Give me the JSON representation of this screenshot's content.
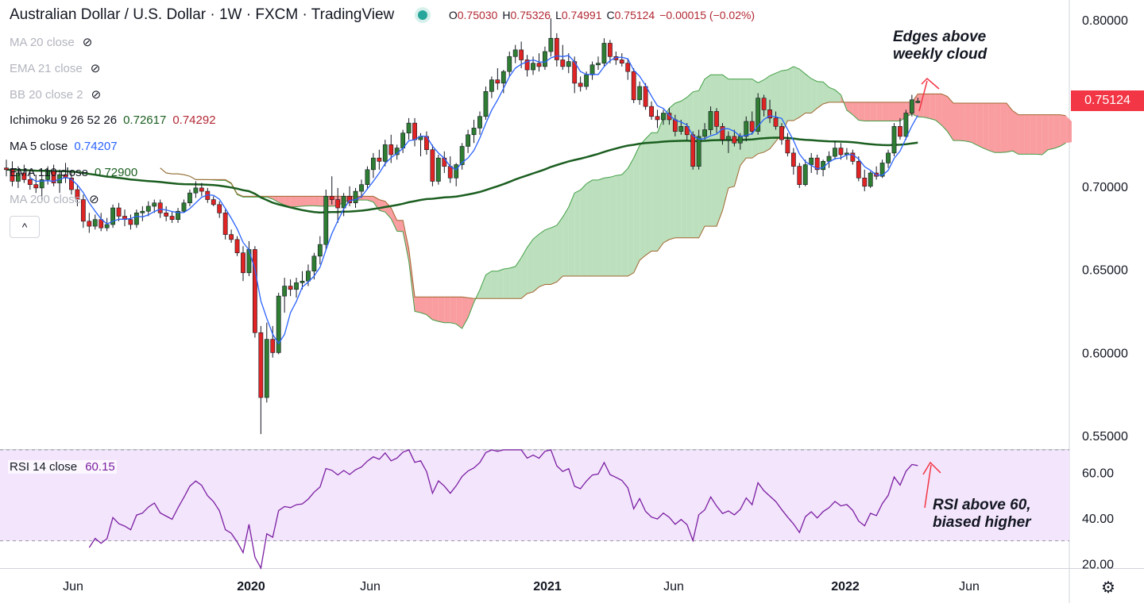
{
  "header": {
    "symbol": "Australian Dollar / U.S. Dollar · 1W · FXCM · TradingView",
    "ohlc": [
      {
        "k": "O",
        "v": "0.75030"
      },
      {
        "k": "H",
        "v": "0.75326"
      },
      {
        "k": "L",
        "v": "0.74991"
      },
      {
        "k": "C",
        "v": "0.75124"
      },
      {
        "k": "",
        "v": "−0.00015 (−0.02%)"
      }
    ]
  },
  "indicators": [
    {
      "name": "MA 20 close",
      "values": [],
      "hidden": true
    },
    {
      "name": "EMA 21 close",
      "values": [],
      "hidden": true
    },
    {
      "name": "BB 20 close 2",
      "values": [],
      "hidden": true
    },
    {
      "name": "Ichimoku 9 26 52 26",
      "values": [
        "0.72617",
        "0.74292"
      ],
      "hidden": false
    },
    {
      "name": "MA 5 close",
      "values": [
        "0.74207"
      ],
      "hidden": false
    },
    {
      "name": "EMA 110 close",
      "values": [
        "0.72900"
      ],
      "hidden": false
    },
    {
      "name": "MA 200 close",
      "values": [],
      "hidden": true
    }
  ],
  "rsi_label": {
    "name": "RSI 14 close",
    "value": "60.15"
  },
  "current_price_tag": "0.75124",
  "annotations": {
    "cloud": [
      "Edges above",
      "weekly cloud"
    ],
    "rsi": [
      "RSI above 60,",
      "biased higher"
    ]
  },
  "colors": {
    "up": "#2e7d32",
    "down": "#e02424",
    "ma5": "#2962ff",
    "ema110": "#1b5e20",
    "kumo_bear": "#f77c80",
    "kumo_bull": "#a5d6a7",
    "rsi_line": "#7b1fa2",
    "rsi_band": "#f3e5fc"
  },
  "chart_data": [
    {
      "type": "candlestick",
      "title": "Australian Dollar / U.S. Dollar · 1W · FXCM",
      "price_axis": {
        "ticks": [
          0.55,
          0.6,
          0.65,
          0.7,
          0.75,
          0.8
        ],
        "labels": [
          "0.55000",
          "0.60000",
          "0.65000",
          "0.70000",
          "0.75000",
          "0.80000"
        ],
        "range": [
          0.542,
          0.812
        ]
      },
      "time_axis": {
        "labels": [
          "Jun",
          "2020",
          "Jun",
          "2021",
          "Jun",
          "2022",
          "Jun"
        ]
      },
      "ohlc_weekly": [
        [
          0.711,
          0.716,
          0.706,
          0.71
        ],
        [
          0.71,
          0.715,
          0.7,
          0.703
        ],
        [
          0.703,
          0.712,
          0.699,
          0.708
        ],
        [
          0.708,
          0.713,
          0.702,
          0.704
        ],
        [
          0.704,
          0.71,
          0.698,
          0.701
        ],
        [
          0.701,
          0.707,
          0.696,
          0.699
        ],
        [
          0.699,
          0.706,
          0.692,
          0.704
        ],
        [
          0.704,
          0.712,
          0.701,
          0.709
        ],
        [
          0.709,
          0.713,
          0.7,
          0.702
        ],
        [
          0.702,
          0.71,
          0.696,
          0.707
        ],
        [
          0.707,
          0.714,
          0.702,
          0.705
        ],
        [
          0.705,
          0.709,
          0.695,
          0.698
        ],
        [
          0.698,
          0.701,
          0.688,
          0.692
        ],
        [
          0.692,
          0.695,
          0.675,
          0.679
        ],
        [
          0.679,
          0.684,
          0.672,
          0.676
        ],
        [
          0.676,
          0.683,
          0.674,
          0.68
        ],
        [
          0.68,
          0.684,
          0.673,
          0.675
        ],
        [
          0.675,
          0.681,
          0.673,
          0.677
        ],
        [
          0.677,
          0.689,
          0.675,
          0.687
        ],
        [
          0.687,
          0.69,
          0.679,
          0.682
        ],
        [
          0.682,
          0.686,
          0.676,
          0.68
        ],
        [
          0.68,
          0.683,
          0.674,
          0.677
        ],
        [
          0.677,
          0.686,
          0.675,
          0.684
        ],
        [
          0.684,
          0.688,
          0.679,
          0.685
        ],
        [
          0.685,
          0.691,
          0.682,
          0.688
        ],
        [
          0.688,
          0.692,
          0.684,
          0.69
        ],
        [
          0.69,
          0.692,
          0.681,
          0.684
        ],
        [
          0.684,
          0.688,
          0.679,
          0.682
        ],
        [
          0.682,
          0.685,
          0.678,
          0.68
        ],
        [
          0.68,
          0.687,
          0.678,
          0.685
        ],
        [
          0.685,
          0.692,
          0.684,
          0.69
        ],
        [
          0.69,
          0.698,
          0.688,
          0.696
        ],
        [
          0.696,
          0.703,
          0.693,
          0.699
        ],
        [
          0.699,
          0.702,
          0.694,
          0.697
        ],
        [
          0.697,
          0.699,
          0.69,
          0.692
        ],
        [
          0.692,
          0.694,
          0.688,
          0.689
        ],
        [
          0.689,
          0.691,
          0.681,
          0.684
        ],
        [
          0.684,
          0.686,
          0.668,
          0.671
        ],
        [
          0.671,
          0.674,
          0.666,
          0.668
        ],
        [
          0.668,
          0.67,
          0.658,
          0.66
        ],
        [
          0.66,
          0.664,
          0.643,
          0.648
        ],
        [
          0.648,
          0.667,
          0.646,
          0.662
        ],
        [
          0.662,
          0.664,
          0.609,
          0.612
        ],
        [
          0.612,
          0.616,
          0.551,
          0.573
        ],
        [
          0.573,
          0.618,
          0.57,
          0.608
        ],
        [
          0.608,
          0.616,
          0.597,
          0.6
        ],
        [
          0.6,
          0.636,
          0.599,
          0.634
        ],
        [
          0.634,
          0.645,
          0.624,
          0.64
        ],
        [
          0.64,
          0.644,
          0.634,
          0.638
        ],
        [
          0.638,
          0.645,
          0.633,
          0.642
        ],
        [
          0.642,
          0.649,
          0.638,
          0.643
        ],
        [
          0.643,
          0.653,
          0.64,
          0.649
        ],
        [
          0.649,
          0.66,
          0.644,
          0.658
        ],
        [
          0.658,
          0.67,
          0.653,
          0.665
        ],
        [
          0.665,
          0.698,
          0.662,
          0.694
        ],
        [
          0.694,
          0.706,
          0.689,
          0.692
        ],
        [
          0.692,
          0.699,
          0.678,
          0.687
        ],
        [
          0.687,
          0.696,
          0.682,
          0.694
        ],
        [
          0.694,
          0.7,
          0.688,
          0.69
        ],
        [
          0.69,
          0.699,
          0.687,
          0.697
        ],
        [
          0.697,
          0.704,
          0.693,
          0.701
        ],
        [
          0.701,
          0.712,
          0.698,
          0.71
        ],
        [
          0.71,
          0.72,
          0.705,
          0.717
        ],
        [
          0.717,
          0.722,
          0.71,
          0.715
        ],
        [
          0.715,
          0.728,
          0.712,
          0.725
        ],
        [
          0.725,
          0.731,
          0.714,
          0.719
        ],
        [
          0.719,
          0.725,
          0.716,
          0.723
        ],
        [
          0.723,
          0.734,
          0.72,
          0.732
        ],
        [
          0.732,
          0.741,
          0.728,
          0.738
        ],
        [
          0.738,
          0.741,
          0.724,
          0.728
        ],
        [
          0.728,
          0.732,
          0.718,
          0.73
        ],
        [
          0.73,
          0.733,
          0.719,
          0.722
        ],
        [
          0.722,
          0.725,
          0.7,
          0.703
        ],
        [
          0.703,
          0.719,
          0.701,
          0.717
        ],
        [
          0.717,
          0.721,
          0.708,
          0.712
        ],
        [
          0.712,
          0.718,
          0.702,
          0.705
        ],
        [
          0.705,
          0.714,
          0.7,
          0.713
        ],
        [
          0.713,
          0.726,
          0.71,
          0.724
        ],
        [
          0.724,
          0.734,
          0.72,
          0.731
        ],
        [
          0.731,
          0.74,
          0.726,
          0.735
        ],
        [
          0.735,
          0.745,
          0.731,
          0.742
        ],
        [
          0.742,
          0.76,
          0.74,
          0.757
        ],
        [
          0.757,
          0.766,
          0.753,
          0.764
        ],
        [
          0.764,
          0.771,
          0.758,
          0.762
        ],
        [
          0.762,
          0.77,
          0.756,
          0.769
        ],
        [
          0.769,
          0.781,
          0.766,
          0.778
        ],
        [
          0.778,
          0.785,
          0.774,
          0.782
        ],
        [
          0.782,
          0.787,
          0.771,
          0.776
        ],
        [
          0.776,
          0.779,
          0.766,
          0.77
        ],
        [
          0.77,
          0.778,
          0.767,
          0.774
        ],
        [
          0.774,
          0.78,
          0.769,
          0.772
        ],
        [
          0.772,
          0.784,
          0.77,
          0.781
        ],
        [
          0.781,
          0.801,
          0.778,
          0.789
        ],
        [
          0.789,
          0.792,
          0.772,
          0.776
        ],
        [
          0.776,
          0.785,
          0.77,
          0.772
        ],
        [
          0.772,
          0.78,
          0.768,
          0.775
        ],
        [
          0.775,
          0.778,
          0.756,
          0.762
        ],
        [
          0.762,
          0.766,
          0.757,
          0.76
        ],
        [
          0.76,
          0.769,
          0.758,
          0.767
        ],
        [
          0.767,
          0.775,
          0.764,
          0.773
        ],
        [
          0.773,
          0.778,
          0.77,
          0.774
        ],
        [
          0.774,
          0.789,
          0.772,
          0.786
        ],
        [
          0.786,
          0.788,
          0.774,
          0.778
        ],
        [
          0.778,
          0.781,
          0.773,
          0.776
        ],
        [
          0.776,
          0.78,
          0.772,
          0.774
        ],
        [
          0.774,
          0.777,
          0.764,
          0.769
        ],
        [
          0.769,
          0.771,
          0.75,
          0.752
        ],
        [
          0.752,
          0.763,
          0.749,
          0.76
        ],
        [
          0.76,
          0.762,
          0.746,
          0.748
        ],
        [
          0.748,
          0.751,
          0.74,
          0.742
        ],
        [
          0.742,
          0.746,
          0.735,
          0.74
        ],
        [
          0.74,
          0.746,
          0.737,
          0.744
        ],
        [
          0.744,
          0.747,
          0.737,
          0.74
        ],
        [
          0.74,
          0.743,
          0.73,
          0.733
        ],
        [
          0.733,
          0.74,
          0.731,
          0.736
        ],
        [
          0.736,
          0.738,
          0.728,
          0.731
        ],
        [
          0.731,
          0.733,
          0.71,
          0.712
        ],
        [
          0.712,
          0.734,
          0.71,
          0.73
        ],
        [
          0.73,
          0.738,
          0.728,
          0.734
        ],
        [
          0.734,
          0.748,
          0.731,
          0.745
        ],
        [
          0.745,
          0.747,
          0.732,
          0.736
        ],
        [
          0.736,
          0.738,
          0.725,
          0.728
        ],
        [
          0.728,
          0.733,
          0.72,
          0.73
        ],
        [
          0.73,
          0.734,
          0.724,
          0.726
        ],
        [
          0.726,
          0.732,
          0.722,
          0.73
        ],
        [
          0.73,
          0.742,
          0.727,
          0.739
        ],
        [
          0.739,
          0.745,
          0.731,
          0.733
        ],
        [
          0.733,
          0.756,
          0.731,
          0.753
        ],
        [
          0.753,
          0.755,
          0.742,
          0.746
        ],
        [
          0.746,
          0.752,
          0.738,
          0.741
        ],
        [
          0.741,
          0.745,
          0.734,
          0.736
        ],
        [
          0.736,
          0.738,
          0.725,
          0.728
        ],
        [
          0.728,
          0.732,
          0.718,
          0.72
        ],
        [
          0.72,
          0.723,
          0.707,
          0.712
        ],
        [
          0.712,
          0.714,
          0.699,
          0.701
        ],
        [
          0.701,
          0.716,
          0.7,
          0.713
        ],
        [
          0.713,
          0.72,
          0.708,
          0.717
        ],
        [
          0.717,
          0.719,
          0.707,
          0.71
        ],
        [
          0.71,
          0.716,
          0.706,
          0.715
        ],
        [
          0.715,
          0.721,
          0.711,
          0.718
        ],
        [
          0.718,
          0.727,
          0.716,
          0.723
        ],
        [
          0.723,
          0.726,
          0.716,
          0.719
        ],
        [
          0.719,
          0.723,
          0.716,
          0.72
        ],
        [
          0.72,
          0.722,
          0.713,
          0.715
        ],
        [
          0.715,
          0.718,
          0.703,
          0.705
        ],
        [
          0.705,
          0.71,
          0.697,
          0.7
        ],
        [
          0.7,
          0.709,
          0.699,
          0.708
        ],
        [
          0.708,
          0.712,
          0.704,
          0.706
        ],
        [
          0.706,
          0.716,
          0.705,
          0.714
        ],
        [
          0.714,
          0.722,
          0.711,
          0.72
        ],
        [
          0.72,
          0.738,
          0.718,
          0.736
        ],
        [
          0.736,
          0.741,
          0.728,
          0.73
        ],
        [
          0.73,
          0.746,
          0.728,
          0.744
        ],
        [
          0.744,
          0.755,
          0.742,
          0.752
        ],
        [
          0.7503,
          0.75326,
          0.74991,
          0.75124
        ]
      ],
      "rsi": {
        "ticks": [
          20,
          40,
          60
        ],
        "labels": [
          "20.00",
          "40.00",
          "60.00"
        ],
        "band": [
          30,
          70
        ],
        "range": [
          18,
          70
        ]
      }
    }
  ]
}
